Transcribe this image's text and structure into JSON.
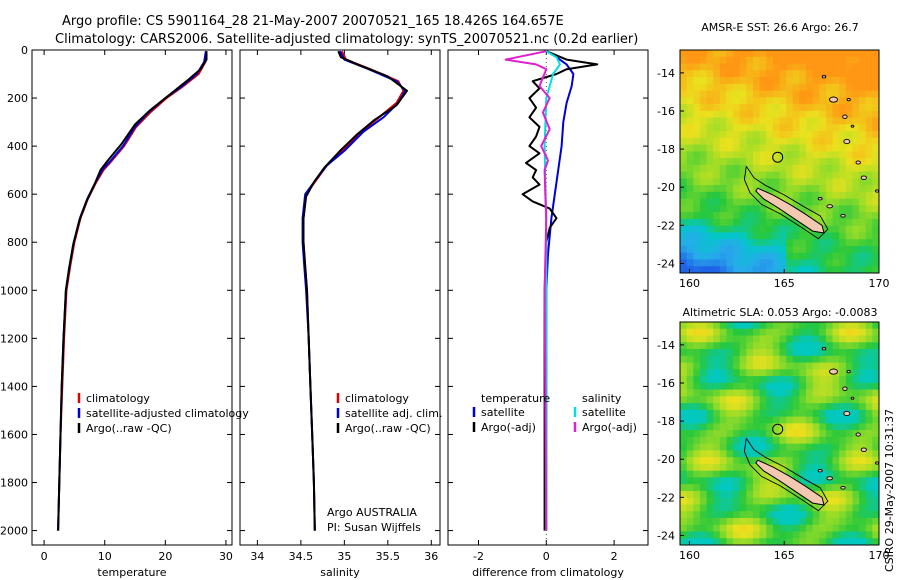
{
  "header": {
    "line1": "Argo profile: CS 5901164_28 21-May-2007 20070521_165 18.426S 164.657E",
    "line2": "Climatology: CARS2006. Satellite-adjusted climatology: synTS_20070521.nc (0.2d earlier)"
  },
  "side_stamp": "CSIRO 29-May-2007 10:31:37",
  "chart_data": [
    {
      "id": "temperature",
      "type": "line",
      "xlabel": "temperature",
      "ylabel": "",
      "xlim": [
        -2,
        31
      ],
      "ylim": [
        0,
        2060
      ],
      "y_inverted": true,
      "xticks": [
        0,
        10,
        20,
        30
      ],
      "yticks": [
        0,
        200,
        400,
        600,
        800,
        1000,
        1200,
        1400,
        1600,
        1800,
        2000
      ],
      "legend": [
        "climatology",
        "satellite-adjusted climatology",
        "Argo(..raw -QC)"
      ],
      "legend_colors": [
        "#e00000",
        "#0000d8",
        "#000000"
      ],
      "series": [
        {
          "name": "climatology",
          "color": "#e00000",
          "points": [
            [
              26.8,
              5
            ],
            [
              26.6,
              50
            ],
            [
              25.5,
              100
            ],
            [
              23,
              150
            ],
            [
              20.2,
              200
            ],
            [
              17.5,
              260
            ],
            [
              15.2,
              320
            ],
            [
              13.2,
              400
            ],
            [
              11.2,
              460
            ],
            [
              9.8,
              500
            ],
            [
              8.6,
              550
            ],
            [
              7.2,
              620
            ],
            [
              6,
              700
            ],
            [
              5,
              800
            ],
            [
              4.3,
              900
            ],
            [
              3.7,
              1000
            ],
            [
              3.3,
              1200
            ],
            [
              3,
              1400
            ],
            [
              2.7,
              1600
            ],
            [
              2.5,
              1800
            ],
            [
              2.3,
              2000
            ]
          ]
        },
        {
          "name": "satellite-adjusted climatology",
          "color": "#0000d8",
          "points": [
            [
              26.7,
              5
            ],
            [
              26.4,
              50
            ],
            [
              25.2,
              100
            ],
            [
              22.8,
              150
            ],
            [
              20,
              200
            ],
            [
              17.2,
              260
            ],
            [
              15,
              320
            ],
            [
              13,
              400
            ],
            [
              11,
              460
            ],
            [
              9.6,
              500
            ],
            [
              8.5,
              550
            ],
            [
              7.1,
              620
            ],
            [
              5.9,
              700
            ],
            [
              4.9,
              800
            ],
            [
              4.2,
              900
            ],
            [
              3.6,
              1000
            ],
            [
              3.2,
              1200
            ],
            [
              2.9,
              1400
            ],
            [
              2.7,
              1600
            ],
            [
              2.5,
              1800
            ],
            [
              2.3,
              2000
            ]
          ]
        },
        {
          "name": "Argo(..raw -QC)",
          "color": "#000000",
          "points": [
            [
              26.8,
              5
            ],
            [
              26.8,
              40
            ],
            [
              25.8,
              80
            ],
            [
              23.5,
              130
            ],
            [
              20.5,
              190
            ],
            [
              17.5,
              250
            ],
            [
              15,
              310
            ],
            [
              12.8,
              390
            ],
            [
              10.5,
              460
            ],
            [
              9.3,
              500
            ],
            [
              8.3,
              560
            ],
            [
              7,
              630
            ],
            [
              5.8,
              710
            ],
            [
              4.8,
              810
            ],
            [
              4.1,
              910
            ],
            [
              3.6,
              1000
            ],
            [
              3.2,
              1200
            ],
            [
              2.9,
              1400
            ],
            [
              2.7,
              1600
            ],
            [
              2.5,
              1800
            ],
            [
              2.3,
              2000
            ]
          ]
        }
      ]
    },
    {
      "id": "salinity",
      "type": "line",
      "xlabel": "salinity",
      "xlim": [
        33.8,
        36.1
      ],
      "ylim": [
        0,
        2060
      ],
      "y_inverted": true,
      "xticks": [
        34,
        34.5,
        35,
        35.5,
        36
      ],
      "legend": [
        "climatology",
        "satellite adj. clim.",
        "Argo(..raw -QC)"
      ],
      "legend_colors": [
        "#e00000",
        "#0000d8",
        "#000000"
      ],
      "annotation": [
        "Argo AUSTRALIA",
        "PI: Susan Wijffels"
      ],
      "series": [
        {
          "name": "climatology",
          "color": "#e00000",
          "points": [
            [
              34.97,
              5
            ],
            [
              35.02,
              40
            ],
            [
              35.3,
              80
            ],
            [
              35.62,
              130
            ],
            [
              35.68,
              170
            ],
            [
              35.6,
              220
            ],
            [
              35.4,
              280
            ],
            [
              35.2,
              340
            ],
            [
              34.98,
              420
            ],
            [
              34.8,
              480
            ],
            [
              34.68,
              540
            ],
            [
              34.56,
              600
            ],
            [
              34.53,
              700
            ],
            [
              34.53,
              800
            ],
            [
              34.55,
              900
            ],
            [
              34.57,
              1000
            ],
            [
              34.59,
              1200
            ],
            [
              34.61,
              1400
            ],
            [
              34.63,
              1600
            ],
            [
              34.65,
              1800
            ],
            [
              34.66,
              2000
            ]
          ]
        },
        {
          "name": "satellite adj. clim.",
          "color": "#0000d8",
          "points": [
            [
              34.95,
              5
            ],
            [
              35.0,
              40
            ],
            [
              35.28,
              80
            ],
            [
              35.6,
              130
            ],
            [
              35.7,
              170
            ],
            [
              35.62,
              220
            ],
            [
              35.45,
              280
            ],
            [
              35.22,
              340
            ],
            [
              35.0,
              420
            ],
            [
              34.8,
              480
            ],
            [
              34.67,
              540
            ],
            [
              34.55,
              600
            ],
            [
              34.52,
              700
            ],
            [
              34.52,
              800
            ],
            [
              34.54,
              900
            ],
            [
              34.56,
              1000
            ],
            [
              34.59,
              1200
            ],
            [
              34.61,
              1400
            ],
            [
              34.63,
              1600
            ],
            [
              34.65,
              1800
            ],
            [
              34.66,
              2000
            ]
          ]
        },
        {
          "name": "Argo(..raw -QC)",
          "color": "#000000",
          "points": [
            [
              34.93,
              5
            ],
            [
              34.96,
              30
            ],
            [
              35.15,
              60
            ],
            [
              35.5,
              110
            ],
            [
              35.72,
              170
            ],
            [
              35.6,
              230
            ],
            [
              35.35,
              290
            ],
            [
              35.15,
              350
            ],
            [
              34.95,
              420
            ],
            [
              34.77,
              490
            ],
            [
              34.65,
              550
            ],
            [
              34.56,
              610
            ],
            [
              34.53,
              700
            ],
            [
              34.53,
              800
            ],
            [
              34.55,
              900
            ],
            [
              34.57,
              1000
            ],
            [
              34.59,
              1200
            ],
            [
              34.61,
              1400
            ],
            [
              34.63,
              1600
            ],
            [
              34.65,
              1800
            ],
            [
              34.66,
              2000
            ]
          ]
        }
      ]
    },
    {
      "id": "difference",
      "type": "line",
      "xlabel": "difference from climatology",
      "xlim": [
        -2.9,
        3.0
      ],
      "ylim": [
        0,
        2060
      ],
      "y_inverted": true,
      "xticks": [
        -2,
        0,
        2
      ],
      "legend_left_title": "temperature",
      "legend_left": [
        "satellite",
        "Argo(-adj)"
      ],
      "legend_left_colors": [
        "#0000d8",
        "#000000"
      ],
      "legend_right_title": "salinity",
      "legend_right": [
        "satellite",
        "Argo(-adj)"
      ],
      "legend_right_colors": [
        "#00e0e0",
        "#e020d0"
      ],
      "series": [
        {
          "name": "temperature satellite",
          "color": "#0000d8",
          "points": [
            [
              0,
              5
            ],
            [
              0.3,
              30
            ],
            [
              0.6,
              60
            ],
            [
              0.8,
              100
            ],
            [
              0.75,
              150
            ],
            [
              0.6,
              220
            ],
            [
              0.5,
              300
            ],
            [
              0.45,
              400
            ],
            [
              0.4,
              450
            ],
            [
              0.35,
              500
            ],
            [
              0.25,
              600
            ],
            [
              0.15,
              700
            ],
            [
              0.05,
              850
            ],
            [
              0,
              1000
            ],
            [
              0,
              2000
            ]
          ]
        },
        {
          "name": "temperature Argo(-adj)",
          "color": "#000000",
          "points": [
            [
              0,
              5
            ],
            [
              0.6,
              40
            ],
            [
              1.5,
              60
            ],
            [
              0.6,
              80
            ],
            [
              0.3,
              100
            ],
            [
              -0.4,
              130
            ],
            [
              -0.2,
              160
            ],
            [
              -0.5,
              200
            ],
            [
              -0.3,
              240
            ],
            [
              -0.5,
              280
            ],
            [
              -0.2,
              320
            ],
            [
              -0.3,
              360
            ],
            [
              -0.5,
              400
            ],
            [
              -0.2,
              430
            ],
            [
              -0.6,
              470
            ],
            [
              -0.3,
              500
            ],
            [
              -0.4,
              530
            ],
            [
              -0.2,
              560
            ],
            [
              -0.7,
              600
            ],
            [
              -0.4,
              630
            ],
            [
              0.1,
              660
            ],
            [
              0.3,
              700
            ],
            [
              0.1,
              740
            ],
            [
              0,
              800
            ],
            [
              -0.05,
              1000
            ],
            [
              -0.05,
              1500
            ],
            [
              -0.05,
              2000
            ]
          ]
        },
        {
          "name": "salinity satellite",
          "color": "#00e0e0",
          "points": [
            [
              0,
              5
            ],
            [
              0.3,
              30
            ],
            [
              0.4,
              60
            ],
            [
              0.2,
              100
            ],
            [
              0,
              200
            ],
            [
              -0.05,
              400
            ],
            [
              -0.02,
              600
            ],
            [
              0,
              800
            ],
            [
              0,
              2000
            ]
          ]
        },
        {
          "name": "salinity Argo(-adj)",
          "color": "#e020d0",
          "points": [
            [
              0,
              5
            ],
            [
              -1.2,
              40
            ],
            [
              -0.3,
              60
            ],
            [
              0,
              80
            ],
            [
              -0.2,
              150
            ],
            [
              0.1,
              200
            ],
            [
              -0.1,
              260
            ],
            [
              0.1,
              330
            ],
            [
              -0.15,
              400
            ],
            [
              0.05,
              460
            ],
            [
              -0.05,
              500
            ],
            [
              -0.03,
              600
            ],
            [
              0,
              700
            ],
            [
              -0.05,
              1000
            ],
            [
              0,
              2000
            ]
          ]
        }
      ]
    },
    {
      "id": "sst_map",
      "type": "heatmap",
      "title": "AMSR-E SST: 26.6 Argo: 26.7",
      "xticks": [
        160,
        165,
        170
      ],
      "yticks": [
        -14,
        -16,
        -18,
        -20,
        -22,
        -24
      ],
      "xlim": [
        159.5,
        170
      ],
      "ylim": [
        -24.5,
        -12.8
      ],
      "argo_position": [
        164.657,
        -18.426
      ]
    },
    {
      "id": "sla_map",
      "type": "heatmap",
      "title": "Altimetric SLA: 0.053 Argo: -0.0083",
      "xticks": [
        160,
        165,
        170
      ],
      "yticks": [
        -14,
        -16,
        -18,
        -20,
        -22,
        -24
      ],
      "xlim": [
        159.5,
        170
      ],
      "ylim": [
        -24.5,
        -12.8
      ],
      "argo_position": [
        164.657,
        -18.426
      ]
    }
  ]
}
